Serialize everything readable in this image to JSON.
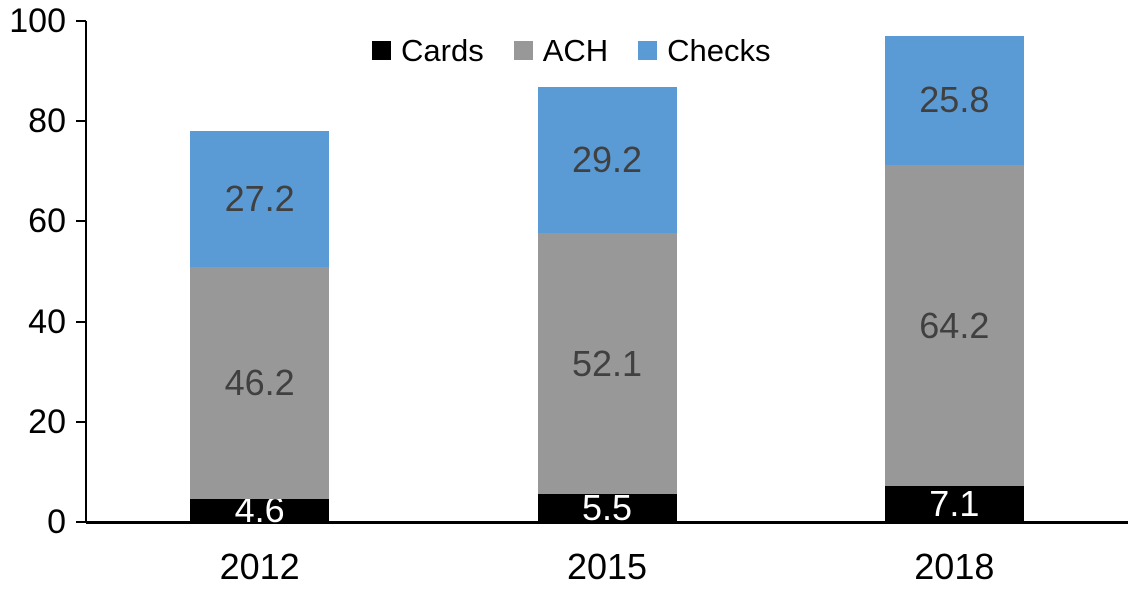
{
  "chart_data": {
    "type": "bar",
    "stacked": true,
    "title": "",
    "xlabel": "",
    "ylabel": "",
    "categories": [
      "2012",
      "2015",
      "2018"
    ],
    "series": [
      {
        "name": "Cards",
        "color": "#000000",
        "label_color": "#FFFFFF",
        "values": [
          4.6,
          5.5,
          7.1
        ]
      },
      {
        "name": "ACH",
        "color": "#989898",
        "label_color": "#404040",
        "values": [
          46.2,
          52.1,
          64.2
        ]
      },
      {
        "name": "Checks",
        "color": "#5B9BD5",
        "label_color": "#404040",
        "values": [
          27.2,
          29.2,
          25.8
        ]
      }
    ],
    "ylim": [
      0,
      100
    ],
    "yticks": [
      0,
      20,
      40,
      60,
      80,
      100
    ],
    "grid": false,
    "legend_position": "top-center",
    "axis_color": "#000000"
  }
}
